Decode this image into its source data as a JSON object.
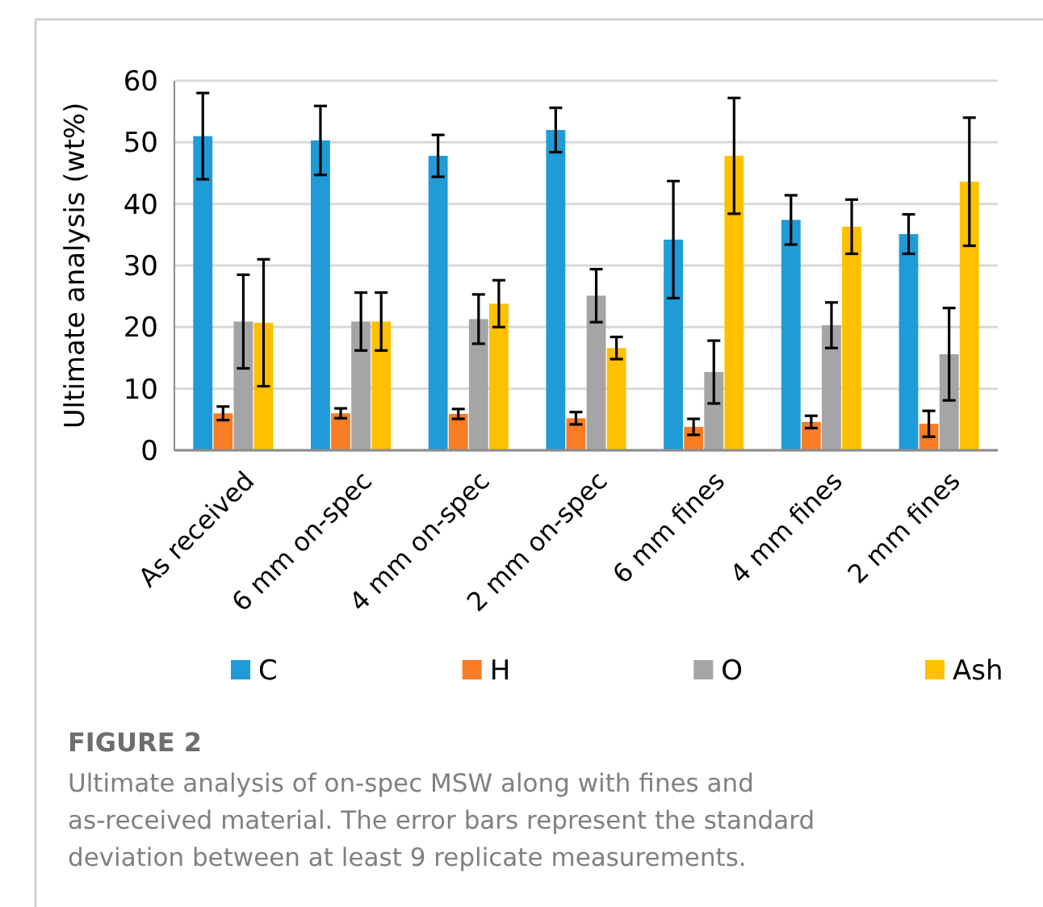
{
  "chart_data": {
    "type": "bar",
    "title": "FIGURE 2",
    "ylabel": "Ultimate analysis (wt%)",
    "categories": [
      "As received",
      "6 mm on-spec",
      "4 mm on-spec",
      "2 mm on-spec",
      "6 mm fines",
      "4 mm fines",
      "2 mm fines"
    ],
    "series": [
      {
        "name": "C",
        "color": "#1f9bd7",
        "values": [
          51.0,
          50.3,
          47.8,
          52.0,
          34.2,
          37.4,
          35.1
        ],
        "errors": [
          7.0,
          5.6,
          3.4,
          3.6,
          9.5,
          4.0,
          3.2
        ]
      },
      {
        "name": "H",
        "color": "#f97d25",
        "values": [
          6.0,
          6.0,
          5.9,
          5.2,
          3.8,
          4.6,
          4.3
        ],
        "errors": [
          1.1,
          0.8,
          0.8,
          1.0,
          1.3,
          1.0,
          2.1
        ]
      },
      {
        "name": "O",
        "color": "#a5a5a5",
        "values": [
          20.9,
          20.9,
          21.3,
          25.1,
          12.7,
          20.3,
          15.6
        ],
        "errors": [
          7.6,
          4.7,
          4.0,
          4.3,
          5.1,
          3.7,
          7.5
        ]
      },
      {
        "name": "Ash",
        "color": "#ffc000",
        "values": [
          20.7,
          20.9,
          23.8,
          16.6,
          47.8,
          36.3,
          43.6
        ],
        "errors": [
          10.3,
          4.7,
          3.8,
          1.8,
          9.4,
          4.4,
          10.4
        ]
      }
    ],
    "ylim": [
      0,
      60
    ],
    "yticks": [
      0,
      10,
      20,
      30,
      40,
      50,
      60
    ],
    "grid": "y",
    "legend": "bottom",
    "annotations": [
      "Ultimate analysis of on-spec MSW along with fines and as-received material. The error bars represent the standard deviation between at least 9 replicate measurements."
    ]
  }
}
